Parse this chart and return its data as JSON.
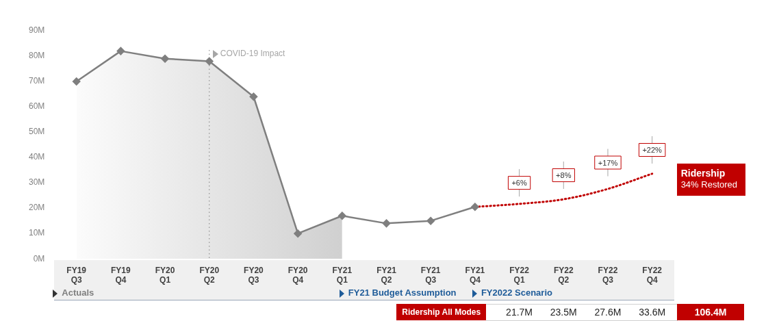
{
  "chart_data": {
    "type": "line",
    "categories": [
      "FY19 Q3",
      "FY19 Q4",
      "FY20 Q1",
      "FY20 Q2",
      "FY20 Q3",
      "FY20 Q4",
      "FY21 Q1",
      "FY21 Q2",
      "FY21 Q3",
      "FY21 Q4",
      "FY22 Q1",
      "FY22 Q2",
      "FY22 Q3",
      "FY22 Q4"
    ],
    "series": [
      {
        "type": "area",
        "color": "#d0d0d0",
        "marker": "none",
        "values": [
          70,
          82,
          79,
          78,
          64,
          10,
          17,
          null,
          null,
          null,
          null,
          null,
          null,
          null
        ]
      },
      {
        "color": "#7f7f7f",
        "marker": "diamond",
        "line_style": "solid",
        "values": [
          70,
          82,
          79,
          78,
          64,
          10,
          17,
          14,
          15,
          20.5,
          null,
          null,
          null,
          null
        ]
      },
      {
        "color": "#c00000",
        "marker": "none",
        "line_style": "dotted",
        "values": [
          null,
          null,
          null,
          null,
          null,
          null,
          null,
          null,
          null,
          20.5,
          21.7,
          23.5,
          27.6,
          33.6
        ],
        "value_labels": [
          null,
          null,
          null,
          null,
          null,
          null,
          null,
          null,
          null,
          null,
          "21.7M",
          "23.5M",
          "27.6M",
          "33.6M"
        ]
      }
    ],
    "ylim": [
      0,
      90
    ],
    "yticks": [
      {
        "value": 0,
        "label": "0M"
      },
      {
        "value": 10,
        "label": "10M"
      },
      {
        "value": 20,
        "label": "20M"
      },
      {
        "value": 30,
        "label": "30M"
      },
      {
        "value": 40,
        "label": "40M"
      },
      {
        "value": 50,
        "label": "50M"
      },
      {
        "value": 60,
        "label": "60M"
      },
      {
        "value": 70,
        "label": "70M"
      },
      {
        "value": 80,
        "label": "80M"
      },
      {
        "value": 90,
        "label": "90M"
      }
    ],
    "grid": false,
    "legend": false,
    "ref_lines": [
      {
        "axis": "x",
        "value": "FY20 Q2",
        "label": "COVID-19 Impact",
        "color": "#808080",
        "line_style": "dotted"
      }
    ],
    "annotations": [
      {
        "text": "+6%",
        "x": "FY22 Q1",
        "y": 30
      },
      {
        "text": "+8%",
        "x": "FY22 Q2",
        "y": 33
      },
      {
        "text": "+17%",
        "x": "FY22 Q3",
        "y": 38
      },
      {
        "text": "+22%",
        "x": "FY22 Q4",
        "y": 43
      },
      "Ridership",
      "34% Restored",
      "Actuals",
      "FY21 Budget Assumption",
      "FY2022 Scenario",
      "Ridership All Modes",
      "106.4M"
    ]
  }
}
